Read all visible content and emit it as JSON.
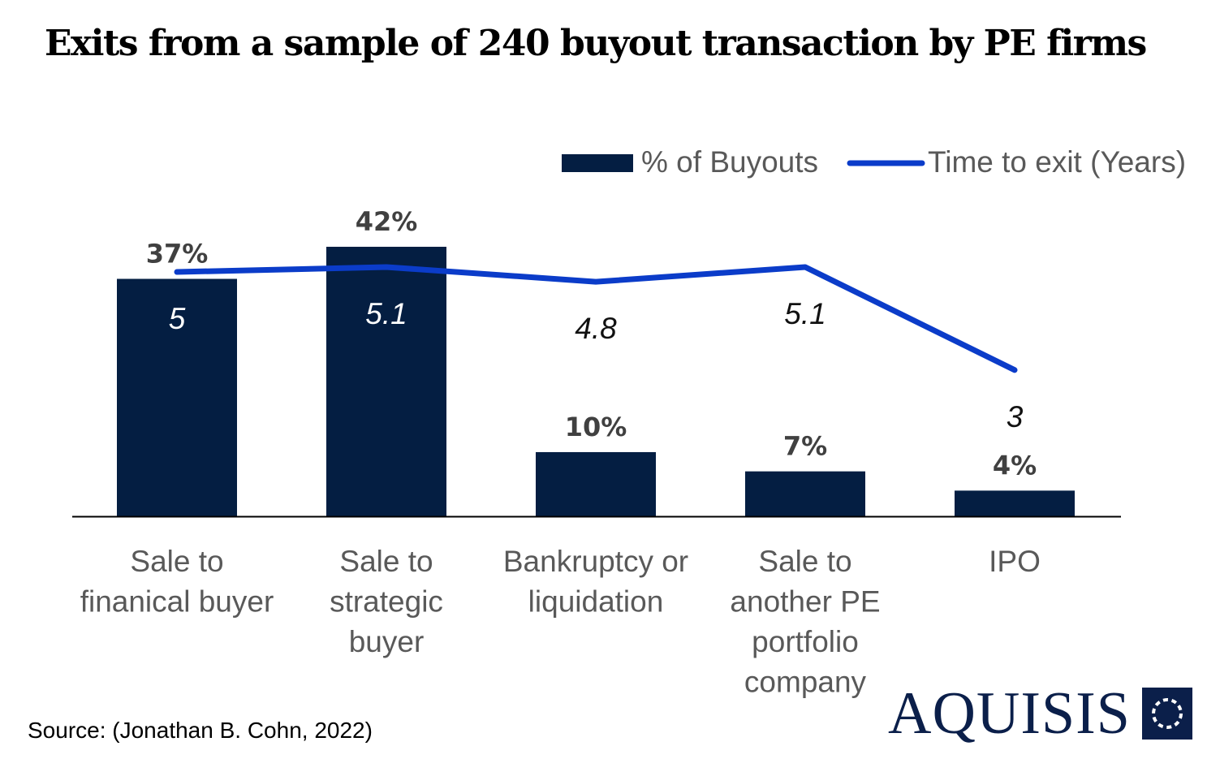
{
  "title": "Exits from a sample of 240 buyout transaction by PE firms",
  "source": "Source: (Jonathan B. Cohn, 2022)",
  "logo": {
    "text": "AQUISIS",
    "icon": "dotted-circle-square-icon"
  },
  "colors": {
    "bar": "#041e42",
    "line": "#0b3cc9",
    "axis": "#000000",
    "category": "#595959",
    "bar_label": "#404040"
  },
  "chart_data": {
    "type": "bar",
    "title": "Exits from a sample of 240 buyout transaction by PE firms",
    "categories": [
      [
        "Sale to",
        "finanical buyer"
      ],
      [
        "Sale to",
        "strategic",
        "buyer"
      ],
      [
        "Bankruptcy or",
        "liquidation"
      ],
      [
        "Sale to",
        "another PE",
        "portfolio",
        "company"
      ],
      [
        "IPO"
      ]
    ],
    "series": [
      {
        "name": "% of Buyouts",
        "type": "bar",
        "axis": "primary",
        "values": [
          37,
          42,
          10,
          7,
          4
        ],
        "labels": [
          "37%",
          "42%",
          "10%",
          "7%",
          "4%"
        ]
      },
      {
        "name": "Time to exit (Years)",
        "type": "line",
        "axis": "secondary",
        "values": [
          5,
          5.1,
          4.8,
          5.1,
          3
        ],
        "labels": [
          "5",
          "5.1",
          "4.8",
          "5.1",
          "3"
        ]
      }
    ],
    "ylim": [
      0,
      42
    ],
    "y2lim": [
      0,
      5.1
    ],
    "legend": "top-right",
    "grid": false,
    "xlabel": "",
    "ylabel": ""
  }
}
